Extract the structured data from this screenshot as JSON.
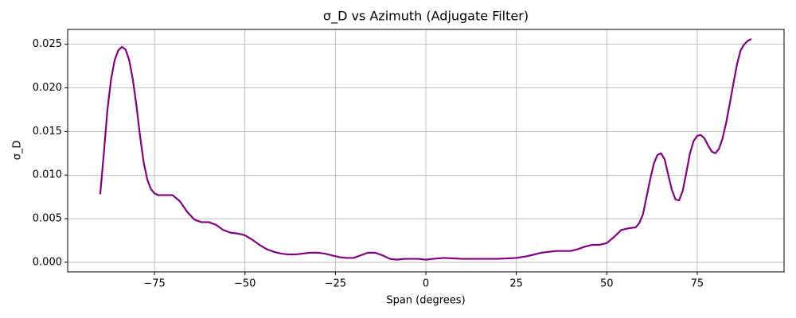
{
  "chart_data": {
    "type": "line",
    "title": "σ_D vs Azimuth (Adjugate Filter)",
    "x_label": "Span (degrees)",
    "y_label": "σ_D",
    "color": "#800080",
    "grid": true,
    "xlim": [
      -99,
      99
    ],
    "ylim": [
      -0.0011,
      0.0267
    ],
    "xticks": [
      {
        "value": -75,
        "label": "−75"
      },
      {
        "value": -50,
        "label": "−50"
      },
      {
        "value": -25,
        "label": "−25"
      },
      0,
      25,
      50,
      75
    ],
    "yticks": [
      {
        "value": 0,
        "label": "0.000"
      },
      {
        "value": 0.005,
        "label": "0.005"
      },
      {
        "value": 0.01,
        "label": "0.010"
      },
      {
        "value": 0.015,
        "label": "0.015"
      },
      {
        "value": 0.02,
        "label": "0.020"
      },
      {
        "value": 0.025,
        "label": "0.025"
      }
    ],
    "x": [
      -90,
      -89,
      -88,
      -87,
      -86,
      -85,
      -84,
      -83,
      -82,
      -81,
      -80,
      -79,
      -78,
      -77,
      -76,
      -75,
      -74,
      -72,
      -70,
      -68,
      -66,
      -64,
      -62,
      -60,
      -58,
      -56,
      -54,
      -52,
      -50,
      -48,
      -46,
      -44,
      -42,
      -40,
      -38,
      -36,
      -34,
      -32,
      -30,
      -28,
      -26,
      -24,
      -22,
      -20,
      -18,
      -16,
      -14,
      -12,
      -10,
      -8,
      -6,
      -4,
      -2,
      0,
      2,
      5,
      10,
      15,
      20,
      25,
      28,
      30,
      32,
      34,
      36,
      38,
      40,
      42,
      44,
      46,
      48,
      50,
      52,
      54,
      56,
      58,
      59,
      60,
      61,
      62,
      63,
      64,
      65,
      66,
      67,
      68,
      69,
      70,
      71,
      72,
      73,
      74,
      75,
      76,
      77,
      78,
      79,
      80,
      81,
      82,
      83,
      84,
      85,
      86,
      87,
      88,
      89,
      90
    ],
    "values": [
      0.0078,
      0.0125,
      0.0175,
      0.021,
      0.0232,
      0.0243,
      0.0247,
      0.0244,
      0.0232,
      0.021,
      0.018,
      0.0145,
      0.0115,
      0.0095,
      0.0084,
      0.0079,
      0.0077,
      0.0077,
      0.0077,
      0.007,
      0.0058,
      0.0049,
      0.0046,
      0.0046,
      0.0043,
      0.0037,
      0.0034,
      0.0033,
      0.0031,
      0.0026,
      0.002,
      0.0015,
      0.0012,
      0.001,
      0.0009,
      0.0009,
      0.001,
      0.0011,
      0.0011,
      0.001,
      0.0008,
      0.0006,
      0.0005,
      0.0005,
      0.0008,
      0.0011,
      0.0011,
      0.0008,
      0.0004,
      0.0003,
      0.0004,
      0.0004,
      0.0004,
      0.0003,
      0.0004,
      0.0005,
      0.0004,
      0.0004,
      0.0004,
      0.0005,
      0.0007,
      0.0009,
      0.0011,
      0.0012,
      0.0013,
      0.0013,
      0.0013,
      0.0015,
      0.0018,
      0.002,
      0.002,
      0.0022,
      0.0029,
      0.0037,
      0.0039,
      0.004,
      0.0045,
      0.0055,
      0.0075,
      0.0095,
      0.0113,
      0.0123,
      0.0125,
      0.0118,
      0.01,
      0.0083,
      0.0072,
      0.0071,
      0.0082,
      0.0103,
      0.0125,
      0.0139,
      0.0145,
      0.0146,
      0.0142,
      0.0134,
      0.0127,
      0.0125,
      0.013,
      0.0142,
      0.016,
      0.0182,
      0.0205,
      0.0227,
      0.0243,
      0.025,
      0.0254,
      0.0256
    ]
  }
}
